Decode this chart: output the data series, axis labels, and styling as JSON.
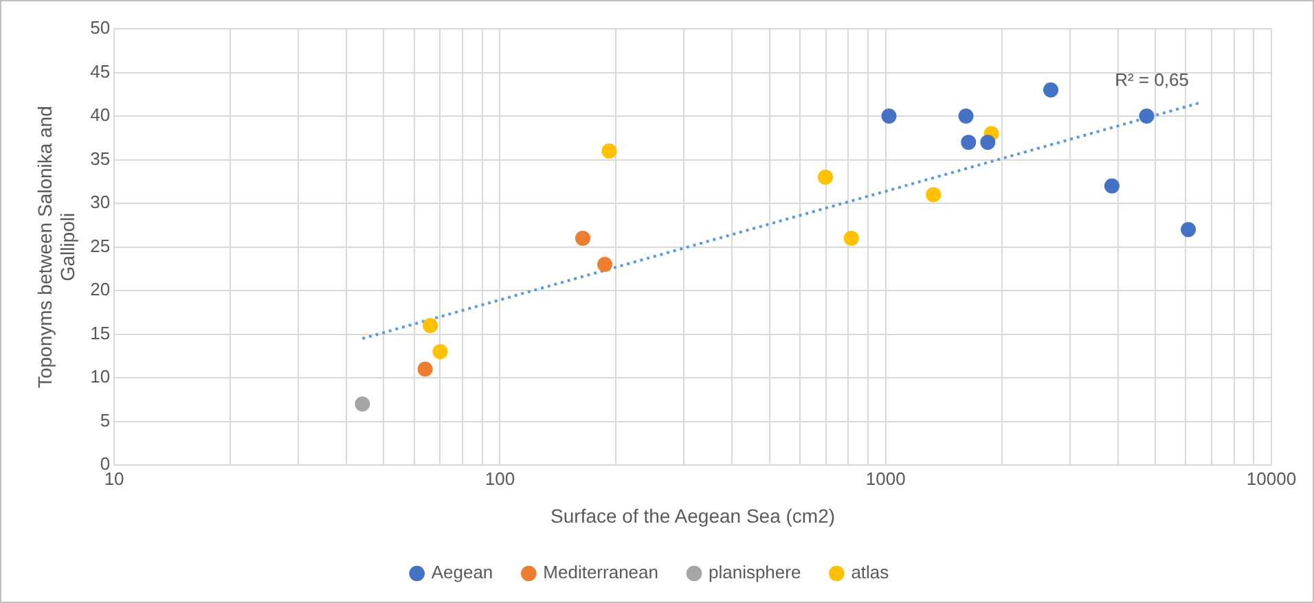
{
  "chart_data": {
    "type": "scatter",
    "xlabel": "Surface of the Aegean Sea (cm2)",
    "ylabel": "Toponyms between Salonika and Gallipoli",
    "annotations": [
      "R² = 0,65"
    ],
    "series": [
      {
        "name": "Aegean",
        "color": "#4472c4",
        "x": [
          1020,
          1615,
          1640,
          1840,
          2680,
          3860,
          4750,
          6090
        ],
        "values": [
          40,
          40,
          37,
          37,
          43,
          32,
          40,
          27
        ]
      },
      {
        "name": "Mediterranean",
        "color": "#ed7d31",
        "x": [
          64,
          164,
          187
        ],
        "values": [
          11,
          26,
          23
        ]
      },
      {
        "name": "planisphere",
        "color": "#a5a5a5",
        "x": [
          44
        ],
        "values": [
          7
        ]
      },
      {
        "name": "atlas",
        "color": "#ffc000",
        "x": [
          66,
          70,
          192,
          698,
          815,
          1330,
          1880
        ],
        "values": [
          16,
          13,
          36,
          33,
          26,
          31,
          38
        ]
      },
      {
        "type": "line",
        "color": "#5b9bd5",
        "line_style": "dotted",
        "marker": "none",
        "x": [
          44,
          6500
        ],
        "values": [
          14.5,
          41.5
        ]
      }
    ],
    "log": "x",
    "xlim": [
      10,
      10000
    ],
    "xticks": [
      10,
      {
        "value": 20,
        "label": null
      },
      {
        "value": 30,
        "label": null
      },
      {
        "value": 40,
        "label": null
      },
      {
        "value": 50,
        "label": null
      },
      {
        "value": 60,
        "label": null
      },
      {
        "value": 70,
        "label": null
      },
      {
        "value": 80,
        "label": null
      },
      {
        "value": 90,
        "label": null
      },
      100,
      {
        "value": 200,
        "label": null
      },
      {
        "value": 300,
        "label": null
      },
      {
        "value": 400,
        "label": null
      },
      {
        "value": 500,
        "label": null
      },
      {
        "value": 600,
        "label": null
      },
      {
        "value": 700,
        "label": null
      },
      {
        "value": 800,
        "label": null
      },
      {
        "value": 900,
        "label": null
      },
      1000,
      {
        "value": 2000,
        "label": null
      },
      {
        "value": 3000,
        "label": null
      },
      {
        "value": 4000,
        "label": null
      },
      {
        "value": 5000,
        "label": null
      },
      {
        "value": 6000,
        "label": null
      },
      {
        "value": 7000,
        "label": null
      },
      {
        "value": 8000,
        "label": null
      },
      {
        "value": 9000,
        "label": null
      },
      10000
    ],
    "ylim": [
      0,
      50
    ],
    "yticks": [
      0,
      5,
      10,
      15,
      20,
      25,
      30,
      35,
      40,
      45,
      50
    ],
    "grid": true,
    "legend": "bottom",
    "marker": "circle"
  }
}
